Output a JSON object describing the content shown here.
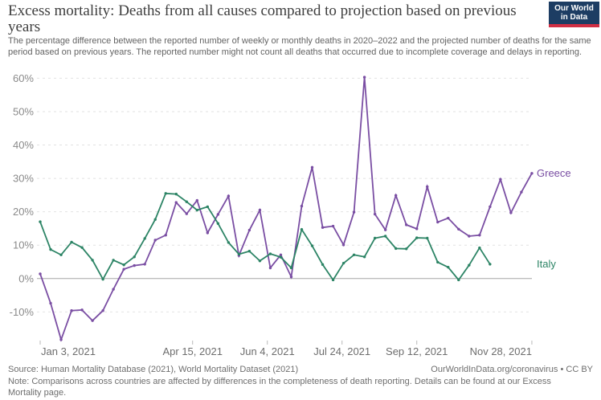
{
  "header": {
    "title": "Excess mortality: Deaths from all causes compared to projection based on previous years",
    "subtitle": "The percentage difference between the reported number of weekly or monthly deaths in 2020–2022 and the projected number of deaths for the same period based on previous years. The reported number might not count all deaths that occurred due to incomplete coverage and delays in reporting.",
    "logo": {
      "line1": "Our World",
      "line2": "in Data",
      "bg_color": "#1d3d63",
      "stripe_color": "#d02f44"
    }
  },
  "chart_data": {
    "type": "line",
    "title": "Excess mortality: Deaths from all causes compared to projection based on previous years",
    "x_start_date": "2021-01-03",
    "x_interval": "weekly",
    "x_dates": [
      "2021-01-03",
      "2021-01-10",
      "2021-01-17",
      "2021-01-24",
      "2021-01-31",
      "2021-02-07",
      "2021-02-14",
      "2021-02-21",
      "2021-02-28",
      "2021-03-07",
      "2021-03-14",
      "2021-03-21",
      "2021-03-28",
      "2021-04-04",
      "2021-04-11",
      "2021-04-18",
      "2021-04-25",
      "2021-05-02",
      "2021-05-09",
      "2021-05-16",
      "2021-05-23",
      "2021-05-30",
      "2021-06-06",
      "2021-06-13",
      "2021-06-20",
      "2021-06-27",
      "2021-07-04",
      "2021-07-11",
      "2021-07-18",
      "2021-07-25",
      "2021-08-01",
      "2021-08-08",
      "2021-08-15",
      "2021-08-22",
      "2021-08-29",
      "2021-09-05",
      "2021-09-12",
      "2021-09-19",
      "2021-09-26",
      "2021-10-03",
      "2021-10-10",
      "2021-10-17",
      "2021-10-24",
      "2021-10-31",
      "2021-11-07",
      "2021-11-14",
      "2021-11-21",
      "2021-11-28"
    ],
    "x_ticks": [
      {
        "label": "Jan 3, 2021",
        "day": 0
      },
      {
        "label": "Apr 15, 2021",
        "day": 102
      },
      {
        "label": "Jun 4, 2021",
        "day": 152
      },
      {
        "label": "Jul 24, 2021",
        "day": 202
      },
      {
        "label": "Sep 12, 2021",
        "day": 252
      },
      {
        "label": "Nov 28, 2021",
        "day": 329
      }
    ],
    "y_ticks": [
      {
        "label": "60%",
        "value": 60
      },
      {
        "label": "50%",
        "value": 50
      },
      {
        "label": "40%",
        "value": 40
      },
      {
        "label": "30%",
        "value": 30
      },
      {
        "label": "20%",
        "value": 20
      },
      {
        "label": "10%",
        "value": 10
      },
      {
        "label": "0%",
        "value": 0
      },
      {
        "label": "-10%",
        "value": -10
      }
    ],
    "ylim": [
      -19,
      62
    ],
    "grid": "horizontal dashed, solid zero line",
    "legend_position": "labels at right end of lines",
    "series": [
      {
        "name": "Greece",
        "color": "#7a4ea3",
        "values": [
          1.4,
          -7.4,
          -18.3,
          -9.6,
          -9.4,
          -12.6,
          -9.6,
          -3.2,
          2.8,
          3.9,
          4.3,
          11.5,
          13.0,
          22.8,
          19.4,
          23.4,
          13.7,
          19.2,
          24.7,
          6.9,
          14.5,
          20.5,
          3.2,
          7.1,
          0.5,
          21.7,
          33.3,
          15.3,
          15.7,
          10.1,
          19.9,
          60.3,
          19.3,
          14.6,
          24.9,
          16.1,
          14.9,
          27.5,
          16.9,
          18.1,
          14.8,
          12.7,
          13.0,
          21.5,
          29.7,
          19.7,
          25.9,
          31.5
        ]
      },
      {
        "name": "Italy",
        "color": "#2c8465",
        "values": [
          17.0,
          8.7,
          7.1,
          10.9,
          9.3,
          5.5,
          -0.2,
          5.5,
          4.1,
          6.5,
          12.0,
          17.7,
          25.5,
          25.3,
          23.0,
          20.5,
          21.5,
          16.5,
          10.8,
          7.3,
          8.2,
          5.3,
          7.4,
          6.4,
          3.2,
          14.7,
          9.8,
          4.2,
          -0.4,
          4.6,
          7.1,
          6.5,
          12.1,
          12.7,
          9.0,
          8.9,
          12.2,
          12.1,
          4.9,
          3.4,
          -0.4,
          4.0,
          9.2,
          4.3
        ]
      }
    ]
  },
  "footer": {
    "source": "Source: Human Mortality Database (2021), World Mortality Dataset (2021)",
    "attribution": "OurWorldInData.org/coronavirus • CC BY",
    "note": "Note: Comparisons across countries are affected by differences in the completeness of death reporting. Details can be found at our Excess Mortality page."
  }
}
